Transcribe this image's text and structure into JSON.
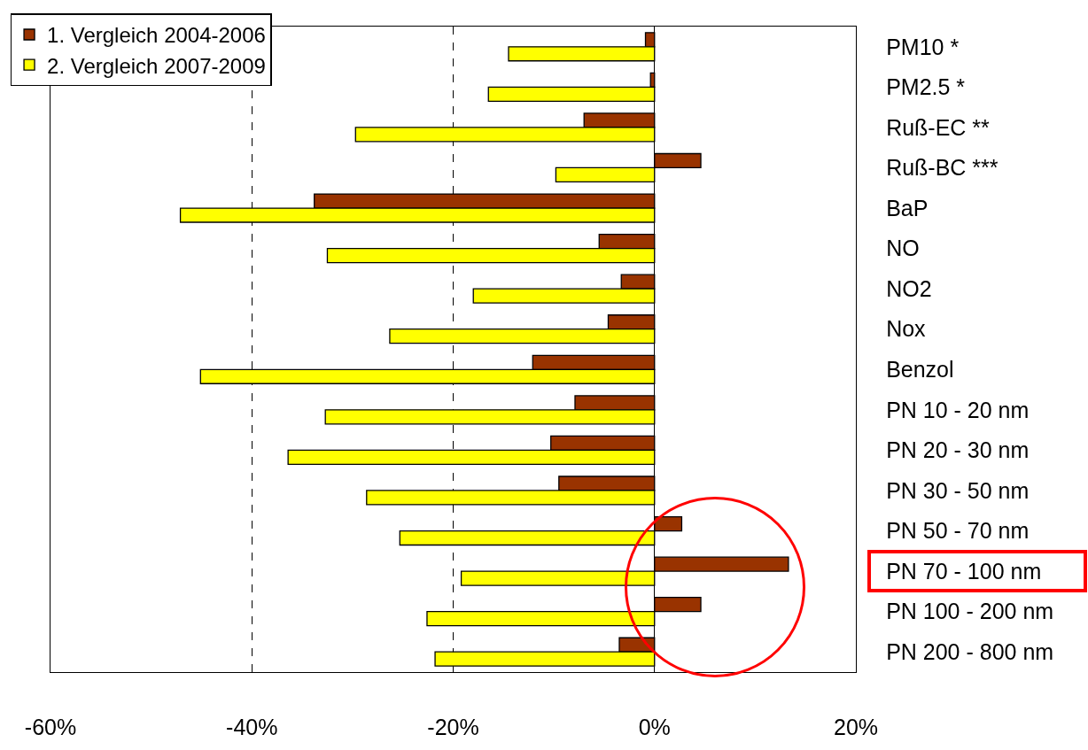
{
  "chart_data": {
    "type": "bar",
    "orientation": "horizontal",
    "categories": [
      "PM10 *",
      "PM2.5 *",
      "Ruß-EC **",
      "Ruß-BC ***",
      "BaP",
      "NO",
      "NO2",
      "Nox",
      "Benzol",
      "PN 10 - 20 nm",
      "PN 20 - 30 nm",
      "PN 30 - 50 nm",
      "PN 50 - 70 nm",
      "PN 70 - 100 nm",
      "PN 100 - 200 nm",
      "PN 200 - 800 nm"
    ],
    "series": [
      {
        "name": "1. Vergleich 2004-2006",
        "color": "#993300",
        "values": [
          -0.9,
          -0.4,
          -7.0,
          4.6,
          -33.8,
          -5.5,
          -3.3,
          -4.6,
          -12.1,
          -7.9,
          -10.3,
          -9.5,
          2.7,
          13.3,
          4.6,
          -3.5
        ]
      },
      {
        "name": "2. Vergleich 2007-2009",
        "color": "#ffff00",
        "values": [
          -14.5,
          -16.5,
          -29.7,
          -9.8,
          -47.1,
          -32.5,
          -18.0,
          -26.3,
          -45.1,
          -32.7,
          -36.4,
          -28.6,
          -25.3,
          -19.2,
          -22.6,
          -21.8
        ]
      }
    ],
    "xlim": [
      -60,
      20
    ],
    "xticks": [
      {
        "value": -60,
        "label": "-60%"
      },
      {
        "value": -40,
        "label": "-40%"
      },
      {
        "value": -20,
        "label": "-20%"
      },
      {
        "value": 0,
        "label": "0%"
      },
      {
        "value": 20,
        "label": "20%"
      }
    ],
    "grid": "x",
    "legend": "top left"
  }
}
